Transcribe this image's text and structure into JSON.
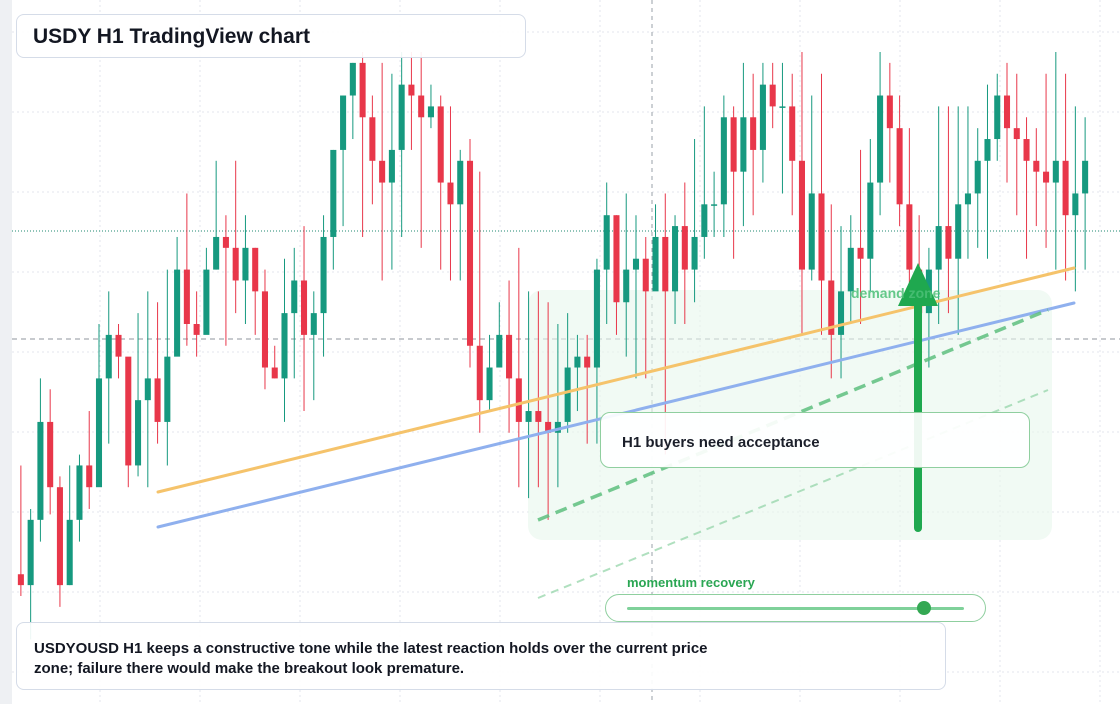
{
  "title": "USDY H1 TradingView chart",
  "zone_label": "demand zone",
  "note": "H1 buyers need acceptance",
  "momentum": {
    "label": "momentum recovery",
    "level": 0.88
  },
  "footer_text": "USDYOUSD H1 keeps a constructive tone while the latest reaction holds over the current price zone; failure there would make the breakout look premature.",
  "colors": {
    "up": "#16997f",
    "down": "#e8374a",
    "accent": "#1fa84f",
    "trend_orange": "#f5c36b",
    "trend_blue": "#8fb0ee"
  },
  "chart_data": {
    "type": "candlestick",
    "symbol": "USDYOUSD",
    "timeframe": "H1",
    "ylim": [
      0,
      100
    ],
    "candles": [
      [
        4,
        2,
        24,
        0
      ],
      [
        2,
        14,
        16,
        -8
      ],
      [
        14,
        32,
        40,
        10
      ],
      [
        32,
        20,
        38,
        15
      ],
      [
        20,
        2,
        22,
        -2
      ],
      [
        2,
        14,
        24,
        2
      ],
      [
        14,
        24,
        26,
        10
      ],
      [
        24,
        20,
        34,
        16
      ],
      [
        20,
        40,
        50,
        36
      ],
      [
        40,
        48,
        56,
        28
      ],
      [
        48,
        44,
        50,
        40
      ],
      [
        44,
        24,
        30,
        20
      ],
      [
        24,
        36,
        52,
        22
      ],
      [
        36,
        40,
        56,
        20
      ],
      [
        40,
        32,
        54,
        28
      ],
      [
        32,
        44,
        60,
        24
      ],
      [
        44,
        60,
        66,
        52
      ],
      [
        60,
        50,
        74,
        46
      ],
      [
        50,
        48,
        56,
        44
      ],
      [
        48,
        60,
        64,
        54
      ],
      [
        60,
        66,
        80,
        60
      ],
      [
        66,
        64,
        70,
        46
      ],
      [
        64,
        58,
        80,
        52
      ],
      [
        58,
        64,
        70,
        50
      ],
      [
        64,
        56,
        64,
        48
      ],
      [
        56,
        42,
        60,
        38
      ],
      [
        42,
        40,
        46,
        40
      ],
      [
        40,
        52,
        62,
        32
      ],
      [
        52,
        58,
        64,
        40
      ],
      [
        58,
        48,
        68,
        34
      ],
      [
        48,
        52,
        56,
        36
      ],
      [
        52,
        66,
        70,
        44
      ],
      [
        66,
        82,
        82,
        60
      ],
      [
        82,
        92,
        92,
        68
      ],
      [
        92,
        98,
        98,
        84
      ],
      [
        98,
        88,
        100,
        66
      ],
      [
        88,
        80,
        92,
        72
      ],
      [
        80,
        76,
        98,
        58
      ],
      [
        76,
        82,
        96,
        60
      ],
      [
        82,
        94,
        100,
        66
      ],
      [
        94,
        92,
        100,
        82
      ],
      [
        92,
        88,
        100,
        64
      ],
      [
        88,
        90,
        94,
        86
      ],
      [
        90,
        76,
        92,
        60
      ],
      [
        76,
        72,
        90,
        58
      ],
      [
        72,
        80,
        82,
        58
      ],
      [
        80,
        46,
        84,
        42
      ],
      [
        46,
        36,
        78,
        30
      ],
      [
        36,
        42,
        48,
        34
      ],
      [
        42,
        48,
        54,
        42
      ],
      [
        48,
        40,
        58,
        30
      ],
      [
        40,
        32,
        64,
        20
      ],
      [
        32,
        34,
        56,
        18
      ],
      [
        34,
        32,
        56,
        20
      ],
      [
        32,
        30,
        54,
        14
      ],
      [
        30,
        32,
        50,
        20
      ],
      [
        32,
        42,
        52,
        30
      ],
      [
        42,
        44,
        48,
        34
      ],
      [
        44,
        42,
        48,
        28
      ],
      [
        42,
        60,
        62,
        28
      ],
      [
        60,
        70,
        76,
        50
      ],
      [
        70,
        54,
        70,
        48
      ],
      [
        54,
        60,
        74,
        44
      ],
      [
        60,
        62,
        70,
        40
      ],
      [
        62,
        56,
        66,
        40
      ],
      [
        56,
        66,
        72,
        60
      ],
      [
        66,
        56,
        74,
        26
      ],
      [
        56,
        68,
        70,
        50
      ],
      [
        68,
        60,
        76,
        50
      ],
      [
        60,
        66,
        84,
        54
      ],
      [
        66,
        72,
        90,
        62
      ],
      [
        72,
        72,
        78,
        66
      ],
      [
        72,
        88,
        92,
        66
      ],
      [
        88,
        78,
        90,
        62
      ],
      [
        78,
        88,
        98,
        68
      ],
      [
        88,
        82,
        96,
        70
      ],
      [
        82,
        94,
        98,
        76
      ],
      [
        94,
        90,
        98,
        86
      ],
      [
        90,
        90,
        98,
        74
      ],
      [
        90,
        80,
        96,
        70
      ],
      [
        80,
        60,
        100,
        48
      ],
      [
        60,
        74,
        92,
        58
      ],
      [
        74,
        58,
        96,
        48
      ],
      [
        58,
        48,
        72,
        40
      ],
      [
        48,
        56,
        68,
        40
      ],
      [
        56,
        64,
        70,
        50
      ],
      [
        64,
        62,
        82,
        50
      ],
      [
        62,
        76,
        84,
        56
      ],
      [
        76,
        92,
        100,
        70
      ],
      [
        92,
        86,
        98,
        76
      ],
      [
        86,
        72,
        92,
        68
      ],
      [
        72,
        60,
        86,
        54
      ],
      [
        60,
        52,
        70,
        48
      ],
      [
        52,
        60,
        64,
        42
      ],
      [
        60,
        68,
        90,
        50
      ],
      [
        68,
        62,
        90,
        52
      ],
      [
        62,
        72,
        90,
        48
      ],
      [
        72,
        74,
        90,
        62
      ],
      [
        74,
        80,
        86,
        64
      ],
      [
        80,
        84,
        94,
        62
      ],
      [
        84,
        92,
        96,
        80
      ],
      [
        92,
        86,
        98,
        76
      ],
      [
        86,
        84,
        96,
        70
      ],
      [
        84,
        80,
        88,
        62
      ],
      [
        80,
        78,
        86,
        68
      ],
      [
        78,
        76,
        96,
        64
      ],
      [
        76,
        80,
        100,
        60
      ],
      [
        80,
        70,
        96,
        58
      ],
      [
        70,
        74,
        90,
        56
      ],
      [
        74,
        80,
        88,
        60
      ]
    ],
    "trendlines": [
      {
        "color": "orange",
        "start": 0.18,
        "end": 0.62
      },
      {
        "color": "blue",
        "start": 0.1,
        "end": 0.52
      }
    ]
  }
}
